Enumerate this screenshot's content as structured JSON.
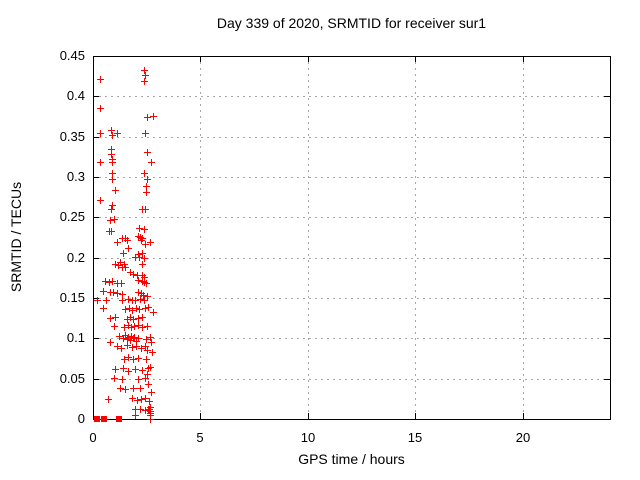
{
  "chart_data": {
    "type": "scatter",
    "title": "Day 339 of 2020, SRMTID for receiver sur1",
    "xlabel": "GPS time / hours",
    "ylabel": "SRMTID / TECUs",
    "xlim": [
      0,
      24.05
    ],
    "ylim": [
      0,
      0.45
    ],
    "x_ticks": [
      0,
      5,
      10,
      15,
      20
    ],
    "x_tick_labels": [
      "0",
      "5",
      "10",
      "15",
      "20"
    ],
    "y_ticks": [
      0,
      0.05,
      0.1,
      0.15,
      0.2,
      0.25,
      0.3,
      0.35,
      0.4,
      0.45
    ],
    "y_tick_labels": [
      "0",
      "0.05",
      "0.1",
      "0.15",
      "0.2",
      "0.25",
      "0.3",
      "0.35",
      "0.4",
      "0.45"
    ],
    "grid": true,
    "legend": "none",
    "marker": "plus",
    "marker_color": "#ff0000",
    "grid_color": "#a8a8a8",
    "border_color": "#000000",
    "series_name": "SRMTID",
    "points": [
      [
        0.31,
        0.421
      ],
      [
        2.37,
        0.433
      ],
      [
        2.42,
        0.427
      ],
      [
        2.37,
        0.419
      ],
      [
        0.31,
        0.385
      ],
      [
        2.5,
        0.375
      ],
      [
        2.78,
        0.376
      ],
      [
        0.31,
        0.355
      ],
      [
        0.82,
        0.358
      ],
      [
        0.87,
        0.352
      ],
      [
        1.12,
        0.355
      ],
      [
        2.42,
        0.355
      ],
      [
        0.86,
        0.335
      ],
      [
        0.84,
        0.329
      ],
      [
        0.87,
        0.322
      ],
      [
        2.5,
        0.331
      ],
      [
        0.31,
        0.318
      ],
      [
        0.9,
        0.318
      ],
      [
        2.7,
        0.318
      ],
      [
        0.87,
        0.305
      ],
      [
        2.38,
        0.305
      ],
      [
        0.87,
        0.297
      ],
      [
        2.5,
        0.298
      ],
      [
        1.02,
        0.284
      ],
      [
        2.45,
        0.289
      ],
      [
        2.45,
        0.282
      ],
      [
        0.33,
        0.271
      ],
      [
        0.88,
        0.265
      ],
      [
        0.86,
        0.26
      ],
      [
        2.26,
        0.26
      ],
      [
        2.42,
        0.26
      ],
      [
        0.79,
        0.247
      ],
      [
        0.99,
        0.248
      ],
      [
        2.15,
        0.237
      ],
      [
        2.39,
        0.235
      ],
      [
        0.76,
        0.233
      ],
      [
        0.84,
        0.233
      ],
      [
        1.33,
        0.224
      ],
      [
        1.49,
        0.225
      ],
      [
        1.57,
        0.222
      ],
      [
        1.1,
        0.219
      ],
      [
        2.11,
        0.227
      ],
      [
        2.2,
        0.226
      ],
      [
        2.25,
        0.222
      ],
      [
        2.3,
        0.224
      ],
      [
        2.42,
        0.217
      ],
      [
        2.65,
        0.22
      ],
      [
        1.64,
        0.212
      ],
      [
        1.41,
        0.206
      ],
      [
        2.11,
        0.205
      ],
      [
        2.26,
        0.206
      ],
      [
        1.95,
        0.201
      ],
      [
        2.15,
        0.201
      ],
      [
        2.38,
        0.2
      ],
      [
        1.26,
        0.195
      ],
      [
        1.02,
        0.192
      ],
      [
        1.15,
        0.191
      ],
      [
        1.46,
        0.192
      ],
      [
        1.36,
        0.188
      ],
      [
        1.49,
        0.188
      ],
      [
        2.26,
        0.192
      ],
      [
        1.72,
        0.182
      ],
      [
        1.88,
        0.18
      ],
      [
        2.03,
        0.178
      ],
      [
        2.29,
        0.178
      ],
      [
        2.39,
        0.176
      ],
      [
        0.56,
        0.171
      ],
      [
        0.74,
        0.17
      ],
      [
        0.9,
        0.171
      ],
      [
        1.1,
        0.168
      ],
      [
        1.3,
        0.168
      ],
      [
        2.11,
        0.172
      ],
      [
        2.26,
        0.171
      ],
      [
        2.39,
        0.17
      ],
      [
        2.47,
        0.168
      ],
      [
        0.48,
        0.159
      ],
      [
        0.79,
        0.157
      ],
      [
        0.94,
        0.158
      ],
      [
        1.1,
        0.156
      ],
      [
        1.33,
        0.155
      ],
      [
        2.11,
        0.157
      ],
      [
        2.23,
        0.156
      ],
      [
        2.34,
        0.154
      ],
      [
        2.5,
        0.153
      ],
      [
        0.17,
        0.148
      ],
      [
        0.59,
        0.148
      ],
      [
        1.36,
        0.148
      ],
      [
        1.62,
        0.149
      ],
      [
        1.83,
        0.147
      ],
      [
        1.96,
        0.148
      ],
      [
        2.19,
        0.149
      ],
      [
        2.35,
        0.147
      ],
      [
        0.48,
        0.138
      ],
      [
        1.49,
        0.136
      ],
      [
        1.67,
        0.138
      ],
      [
        1.8,
        0.135
      ],
      [
        1.99,
        0.137
      ],
      [
        2.15,
        0.136
      ],
      [
        2.4,
        0.138
      ],
      [
        2.56,
        0.139
      ],
      [
        2.81,
        0.133
      ],
      [
        0.8,
        0.125
      ],
      [
        1.03,
        0.126
      ],
      [
        1.57,
        0.124
      ],
      [
        1.72,
        0.126
      ],
      [
        1.88,
        0.124
      ],
      [
        2.08,
        0.125
      ],
      [
        2.27,
        0.126
      ],
      [
        1.0,
        0.115
      ],
      [
        1.46,
        0.114
      ],
      [
        1.62,
        0.116
      ],
      [
        1.78,
        0.114
      ],
      [
        1.93,
        0.115
      ],
      [
        2.11,
        0.116
      ],
      [
        2.3,
        0.114
      ],
      [
        2.51,
        0.115
      ],
      [
        0.8,
        0.096
      ],
      [
        1.2,
        0.103
      ],
      [
        1.41,
        0.101
      ],
      [
        1.49,
        0.104
      ],
      [
        1.57,
        0.099
      ],
      [
        1.64,
        0.102
      ],
      [
        1.7,
        0.098
      ],
      [
        1.78,
        0.103
      ],
      [
        1.85,
        0.1
      ],
      [
        1.93,
        0.102
      ],
      [
        1.99,
        0.097
      ],
      [
        2.08,
        0.101
      ],
      [
        2.45,
        0.099
      ],
      [
        2.64,
        0.102
      ],
      [
        2.72,
        0.095
      ],
      [
        1.12,
        0.09
      ],
      [
        1.3,
        0.088
      ],
      [
        1.57,
        0.092
      ],
      [
        1.8,
        0.089
      ],
      [
        1.99,
        0.091
      ],
      [
        2.24,
        0.088
      ],
      [
        2.43,
        0.09
      ],
      [
        2.49,
        0.085
      ],
      [
        2.73,
        0.083
      ],
      [
        1.46,
        0.075
      ],
      [
        1.64,
        0.077
      ],
      [
        1.88,
        0.074
      ],
      [
        2.11,
        0.076
      ],
      [
        2.45,
        0.074
      ],
      [
        1.03,
        0.062
      ],
      [
        1.41,
        0.063
      ],
      [
        1.64,
        0.06
      ],
      [
        1.96,
        0.062
      ],
      [
        2.27,
        0.061
      ],
      [
        2.58,
        0.063
      ],
      [
        2.64,
        0.064
      ],
      [
        1.0,
        0.051
      ],
      [
        1.33,
        0.049
      ],
      [
        2.08,
        0.05
      ],
      [
        2.43,
        0.051
      ],
      [
        2.49,
        0.056
      ],
      [
        1.26,
        0.038
      ],
      [
        1.49,
        0.037
      ],
      [
        1.88,
        0.039
      ],
      [
        2.19,
        0.038
      ],
      [
        2.56,
        0.044
      ],
      [
        2.7,
        0.034
      ],
      [
        0.72,
        0.025
      ],
      [
        1.8,
        0.026
      ],
      [
        2.03,
        0.024
      ],
      [
        2.24,
        0.025
      ],
      [
        2.4,
        0.026
      ],
      [
        2.62,
        0.022
      ],
      [
        1.96,
        0.012
      ],
      [
        2.19,
        0.013
      ],
      [
        2.43,
        0.011
      ],
      [
        2.58,
        0.012
      ],
      [
        1.94,
        0.005
      ],
      [
        2.64,
        0.015
      ],
      [
        2.64,
        0.01
      ],
      [
        2.64,
        0.005
      ],
      [
        2.6,
        0.012
      ],
      [
        2.67,
        0.008
      ],
      [
        2.64,
        0.0
      ]
    ],
    "zero_cluster_x": [
      0.2,
      0.51,
      1.2
    ]
  }
}
